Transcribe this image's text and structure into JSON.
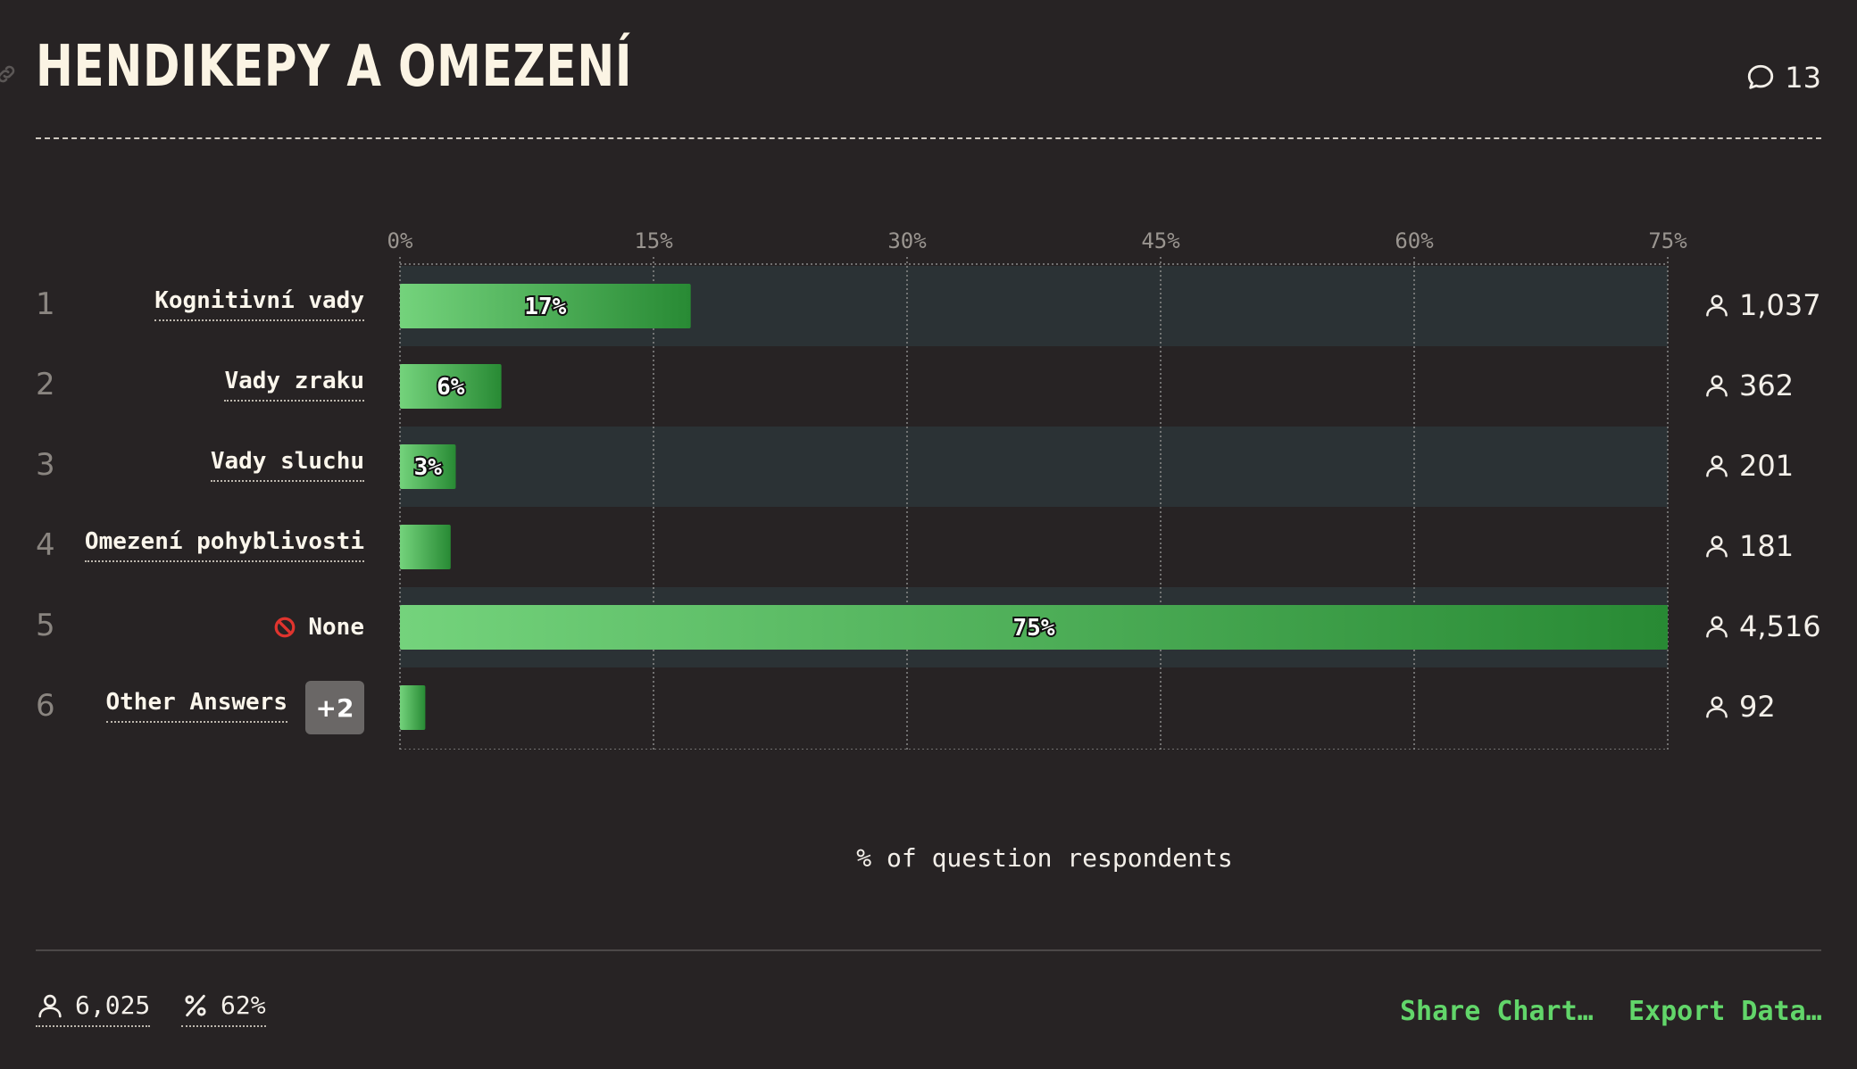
{
  "header": {
    "title": "HENDIKEPY A OMEZENÍ",
    "comment_count": "13"
  },
  "chart_data": {
    "type": "bar",
    "orientation": "horizontal",
    "categories": [
      "Kognitivní vady",
      "Vady zraku",
      "Vady sluchu",
      "Omezení pohyblivosti",
      "None",
      "Other Answers"
    ],
    "ranks": [
      "1",
      "2",
      "3",
      "4",
      "5",
      "6"
    ],
    "values": [
      17.2,
      6.0,
      3.3,
      3.0,
      75.0,
      1.5
    ],
    "value_labels": [
      "17%",
      "6%",
      "3%",
      "",
      "75%",
      ""
    ],
    "counts": [
      "1,037",
      "362",
      "201",
      "181",
      "4,516",
      "92"
    ],
    "other_badge": "+2",
    "xlim": [
      0,
      75
    ],
    "xticks": [
      "0%",
      "15%",
      "30%",
      "45%",
      "60%",
      "75%"
    ],
    "xtick_values": [
      0,
      15,
      30,
      45,
      60,
      75
    ],
    "xlabel": "% of question respondents",
    "grid": true,
    "colors": {
      "bar_start": "#74d37c",
      "bar_end": "#288a34",
      "row_band": "#2b3235",
      "grid": "#8a8a8a"
    }
  },
  "footer": {
    "respondents": "6,025",
    "percent": "62%",
    "share_label": "Share Chart…",
    "export_label": "Export Data…"
  }
}
